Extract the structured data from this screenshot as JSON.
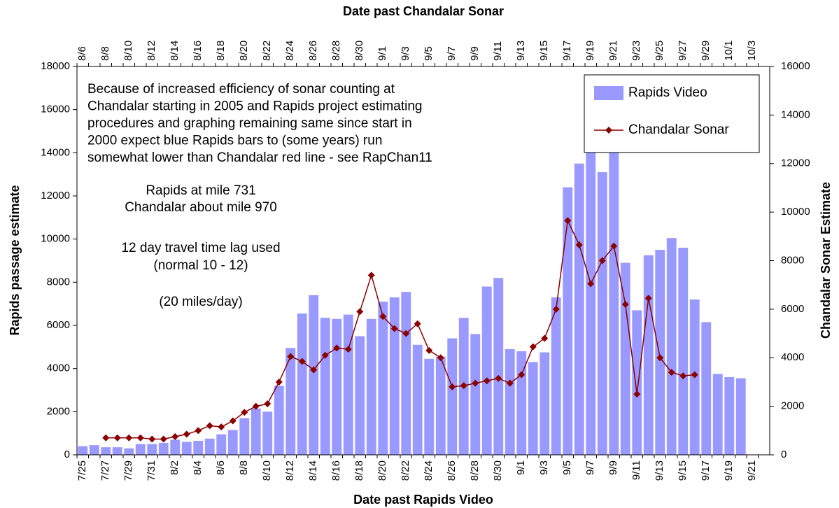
{
  "chart_data": {
    "type": "bar-line",
    "title_top": "Date past Chandalar Sonar",
    "xlabel": "Date past Rapids Video",
    "ylabel": "Rapids passage estimate",
    "y2label": "Chandalar Sonar Estimate",
    "categories": [
      "7/25",
      null,
      "7/27",
      null,
      "7/29",
      null,
      "7/31",
      null,
      "8/2",
      null,
      "8/4",
      null,
      "8/6",
      null,
      "8/8",
      null,
      "8/10",
      null,
      "8/12",
      null,
      "8/14",
      null,
      "8/16",
      null,
      "8/18",
      null,
      "8/20",
      null,
      "8/22",
      null,
      "8/24",
      null,
      "8/26",
      null,
      "8/28",
      null,
      "8/30",
      null,
      "9/1",
      null,
      "9/3",
      null,
      "9/5",
      null,
      "9/7",
      null,
      "9/9",
      null,
      "9/11",
      null,
      "9/13",
      null,
      "9/15",
      null,
      "9/17",
      null,
      "9/19",
      null,
      "9/21",
      null
    ],
    "top_categories": [
      "8/6",
      null,
      "8/8",
      null,
      "8/10",
      null,
      "8/12",
      null,
      "8/14",
      null,
      "8/16",
      null,
      "8/18",
      null,
      "8/20",
      null,
      "8/22",
      null,
      "8/24",
      null,
      "8/26",
      null,
      "8/28",
      null,
      "8/30",
      null,
      "9/1",
      null,
      "9/3",
      null,
      "9/5",
      null,
      "9/7",
      null,
      "9/9",
      null,
      "9/11",
      null,
      "9/13",
      null,
      "9/15",
      null,
      "9/17",
      null,
      "9/19",
      null,
      "9/21",
      null,
      "9/23",
      null,
      "9/25",
      null,
      "9/27",
      null,
      "9/29",
      null,
      "10/1",
      null,
      "10/3",
      null
    ],
    "series": [
      {
        "name": "Rapids Video",
        "type": "bar",
        "color": "#9999ff",
        "values": [
          400,
          450,
          350,
          350,
          300,
          500,
          500,
          550,
          700,
          600,
          650,
          750,
          950,
          1150,
          1700,
          2150,
          2000,
          3200,
          4950,
          6550,
          7400,
          6350,
          6300,
          6500,
          5500,
          6300,
          7100,
          7300,
          7550,
          5100,
          4450,
          4550,
          5400,
          6350,
          5600,
          7800,
          8200,
          4900,
          4800,
          4300,
          4750,
          7300,
          12400,
          13500,
          14300,
          13100,
          15000,
          8900,
          6700,
          9250,
          9500,
          10050,
          9600,
          7200,
          6150,
          3750,
          3600,
          3550,
          null,
          null
        ]
      },
      {
        "name": "Chandalar Sonar",
        "type": "line",
        "axis": "y2",
        "color": "#8b0000",
        "values": [
          null,
          null,
          700,
          700,
          700,
          700,
          650,
          650,
          750,
          850,
          1000,
          1200,
          1150,
          1400,
          1750,
          2000,
          2100,
          3000,
          4050,
          3850,
          3500,
          4100,
          4400,
          4350,
          5900,
          7400,
          5700,
          5200,
          5000,
          5400,
          4300,
          4000,
          2800,
          2850,
          2950,
          3050,
          3150,
          2950,
          3300,
          4450,
          4800,
          6000,
          9650,
          8650,
          7050,
          8000,
          8600,
          6200,
          2500,
          6450,
          4000,
          3400,
          3250,
          3300,
          null,
          null,
          null,
          null,
          null,
          null
        ]
      }
    ],
    "ylim": [
      0,
      18000
    ],
    "yticks": [
      0,
      2000,
      4000,
      6000,
      8000,
      10000,
      12000,
      14000,
      16000,
      18000
    ],
    "y2lim": [
      0,
      16000
    ],
    "y2ticks": [
      0,
      2000,
      4000,
      6000,
      8000,
      10000,
      12000,
      14000,
      16000
    ],
    "grid": false,
    "legend": "upper right",
    "annotation": [
      "Because of increased efficiency of sonar counting at",
      "Chandalar starting in 2005 and  Rapids project estimating",
      "procedures and graphing remaining same since start in",
      "2000 expect blue Rapids bars to (some years) run",
      "somewhat lower than Chandalar red line - see RapChan11"
    ],
    "annotation2": [
      "Rapids at mile 731",
      "Chandalar about mile 970",
      "12 day travel time lag used",
      "(normal 10 - 12)",
      "(20 miles/day)"
    ]
  }
}
